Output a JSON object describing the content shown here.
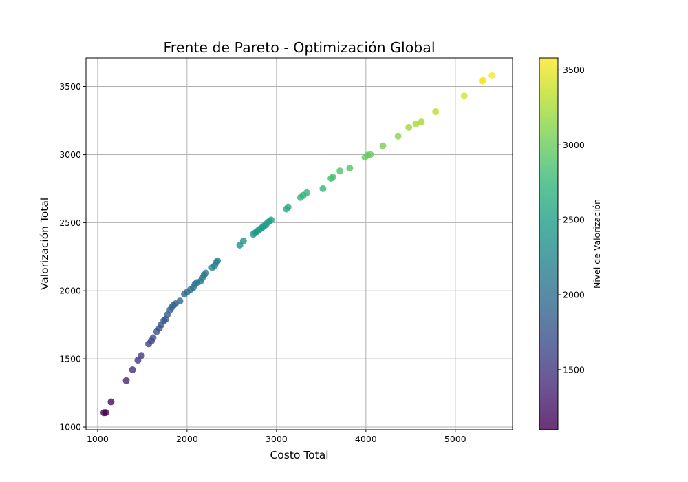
{
  "chart_data": {
    "type": "scatter",
    "title": "Frente de Pareto - Optimización Global",
    "xlabel": "Costo Total",
    "ylabel": "Valorización Total",
    "xlim": [
      870,
      5640
    ],
    "ylim": [
      980,
      3710
    ],
    "xticks": [
      1000,
      2000,
      3000,
      4000,
      5000
    ],
    "yticks": [
      1000,
      1500,
      2000,
      2500,
      3000,
      3500
    ],
    "grid": true,
    "colorbar": {
      "label": "Nivel de Valorización",
      "range": [
        1100,
        3580
      ],
      "ticks": [
        1500,
        2000,
        2500,
        3000,
        3500
      ],
      "colormap": "viridis"
    },
    "points": [
      {
        "x": 1070,
        "y": 1105
      },
      {
        "x": 1090,
        "y": 1106
      },
      {
        "x": 1150,
        "y": 1185
      },
      {
        "x": 1320,
        "y": 1340
      },
      {
        "x": 1390,
        "y": 1420
      },
      {
        "x": 1450,
        "y": 1490
      },
      {
        "x": 1490,
        "y": 1525
      },
      {
        "x": 1570,
        "y": 1610
      },
      {
        "x": 1600,
        "y": 1630
      },
      {
        "x": 1620,
        "y": 1655
      },
      {
        "x": 1660,
        "y": 1700
      },
      {
        "x": 1690,
        "y": 1725
      },
      {
        "x": 1710,
        "y": 1750
      },
      {
        "x": 1740,
        "y": 1780
      },
      {
        "x": 1760,
        "y": 1790
      },
      {
        "x": 1780,
        "y": 1825
      },
      {
        "x": 1810,
        "y": 1860
      },
      {
        "x": 1830,
        "y": 1880
      },
      {
        "x": 1850,
        "y": 1895
      },
      {
        "x": 1870,
        "y": 1905
      },
      {
        "x": 1920,
        "y": 1925
      },
      {
        "x": 1970,
        "y": 1975
      },
      {
        "x": 2000,
        "y": 1990
      },
      {
        "x": 2040,
        "y": 2010
      },
      {
        "x": 2070,
        "y": 2025
      },
      {
        "x": 2090,
        "y": 2050
      },
      {
        "x": 2110,
        "y": 2060
      },
      {
        "x": 2150,
        "y": 2070
      },
      {
        "x": 2170,
        "y": 2095
      },
      {
        "x": 2190,
        "y": 2115
      },
      {
        "x": 2210,
        "y": 2130
      },
      {
        "x": 2280,
        "y": 2170
      },
      {
        "x": 2310,
        "y": 2185
      },
      {
        "x": 2330,
        "y": 2210
      },
      {
        "x": 2340,
        "y": 2220
      },
      {
        "x": 2590,
        "y": 2335
      },
      {
        "x": 2630,
        "y": 2365
      },
      {
        "x": 2740,
        "y": 2415
      },
      {
        "x": 2760,
        "y": 2425
      },
      {
        "x": 2780,
        "y": 2435
      },
      {
        "x": 2800,
        "y": 2445
      },
      {
        "x": 2820,
        "y": 2455
      },
      {
        "x": 2840,
        "y": 2465
      },
      {
        "x": 2860,
        "y": 2475
      },
      {
        "x": 2880,
        "y": 2485
      },
      {
        "x": 2900,
        "y": 2500
      },
      {
        "x": 2920,
        "y": 2510
      },
      {
        "x": 2940,
        "y": 2520
      },
      {
        "x": 3110,
        "y": 2600
      },
      {
        "x": 3130,
        "y": 2615
      },
      {
        "x": 3270,
        "y": 2685
      },
      {
        "x": 3300,
        "y": 2700
      },
      {
        "x": 3340,
        "y": 2720
      },
      {
        "x": 3520,
        "y": 2750
      },
      {
        "x": 3610,
        "y": 2825
      },
      {
        "x": 3630,
        "y": 2835
      },
      {
        "x": 3710,
        "y": 2880
      },
      {
        "x": 3820,
        "y": 2900
      },
      {
        "x": 3990,
        "y": 2980
      },
      {
        "x": 4020,
        "y": 2995
      },
      {
        "x": 4050,
        "y": 3000
      },
      {
        "x": 4190,
        "y": 3065
      },
      {
        "x": 4360,
        "y": 3135
      },
      {
        "x": 4480,
        "y": 3200
      },
      {
        "x": 4560,
        "y": 3225
      },
      {
        "x": 4620,
        "y": 3240
      },
      {
        "x": 4780,
        "y": 3315
      },
      {
        "x": 5100,
        "y": 3430
      },
      {
        "x": 5300,
        "y": 3540
      },
      {
        "x": 5310,
        "y": 3545
      },
      {
        "x": 5410,
        "y": 3580
      }
    ]
  }
}
